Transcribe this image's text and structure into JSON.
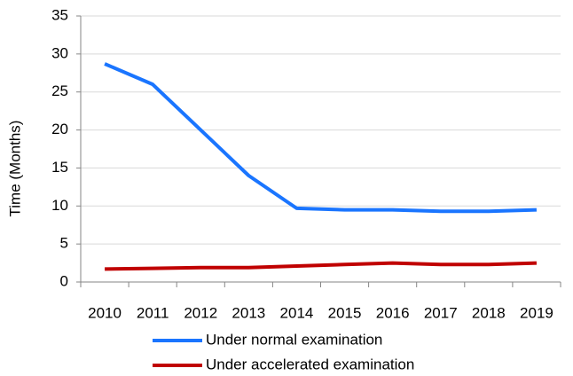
{
  "chart_data": {
    "type": "line",
    "y_label": "Time (Months)",
    "categories": [
      "2010",
      "2011",
      "2012",
      "2013",
      "2014",
      "2015",
      "2016",
      "2017",
      "2018",
      "2019"
    ],
    "series": [
      {
        "name": "Under normal examination",
        "color": "#1a75ff",
        "values": [
          28.7,
          26.0,
          20.0,
          14.0,
          9.7,
          9.5,
          9.5,
          9.3,
          9.3,
          9.5
        ]
      },
      {
        "name": "Under accelerated examination",
        "color": "#c00000",
        "values": [
          1.7,
          1.8,
          1.9,
          1.9,
          2.1,
          2.3,
          2.5,
          2.3,
          2.3,
          2.5
        ]
      }
    ],
    "ylim": [
      0,
      35
    ],
    "yticks": [
      0,
      5,
      10,
      15,
      20,
      25,
      30,
      35
    ],
    "grid": true
  }
}
